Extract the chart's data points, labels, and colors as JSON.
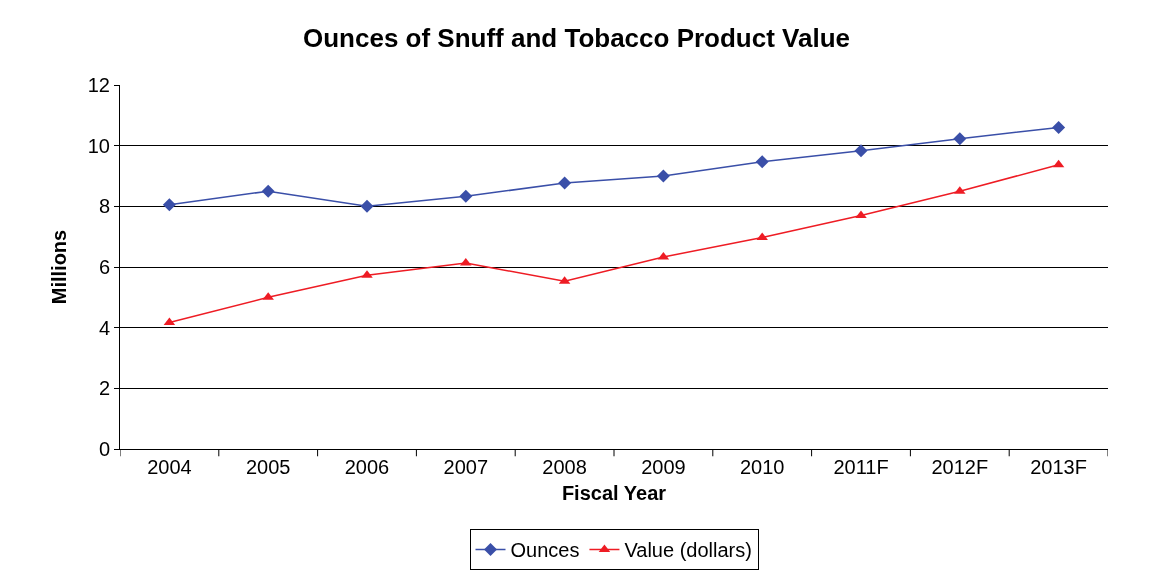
{
  "chart_data": {
    "type": "line",
    "title": "Ounces of Snuff and Tobacco Product Value",
    "xlabel": "Fiscal Year",
    "ylabel": "Millions",
    "categories": [
      "2004",
      "2005",
      "2006",
      "2007",
      "2008",
      "2009",
      "2010",
      "2011F",
      "2012F",
      "2013F"
    ],
    "series": [
      {
        "name": "Ounces",
        "color": "#3a4fa8",
        "marker": "diamond",
        "values": [
          8.05,
          8.5,
          8.0,
          8.33,
          8.77,
          9.0,
          9.47,
          9.83,
          10.23,
          10.6
        ]
      },
      {
        "name": "Value (dollars)",
        "color": "#ee1c24",
        "marker": "triangle",
        "values": [
          4.17,
          5.0,
          5.73,
          6.13,
          5.53,
          6.33,
          6.97,
          7.7,
          8.5,
          9.37
        ]
      }
    ],
    "ylim": [
      0,
      12
    ],
    "yticks": [
      0,
      2,
      4,
      6,
      8,
      10,
      12
    ],
    "grid": "y",
    "legend": "bottom",
    "line_style": "solid"
  }
}
